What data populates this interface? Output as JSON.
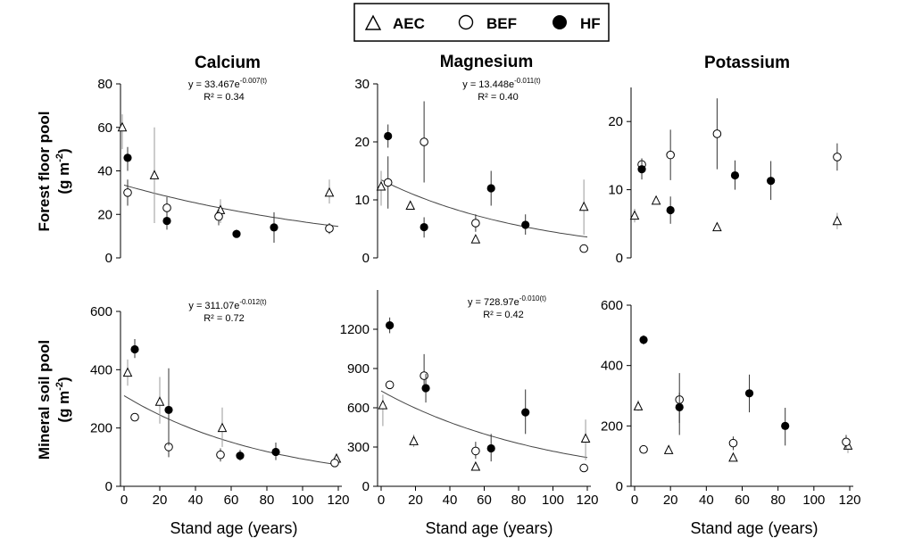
{
  "legend": [
    "AEC",
    "BEF",
    "HF"
  ],
  "row_labels": [
    [
      "Forest floor pool",
      "(g m-2)"
    ],
    [
      "Mineral soil pool",
      "(g m-2)"
    ]
  ],
  "xlabel": "Stand age (years)",
  "chart_data": [
    {
      "type": "scatter",
      "title": "Calcium",
      "ylabel": "Forest floor pool (g m-2)",
      "ylim": [
        0,
        80
      ],
      "yticks": [
        0,
        20,
        40,
        60,
        80
      ],
      "xlim": [
        0,
        120
      ],
      "xticks": null,
      "equation": "y = 33.467e",
      "exponent": "-0.007(t)",
      "r2": "R² = 0.34",
      "fit": {
        "a": 33.467,
        "b": -0.007
      },
      "series": [
        {
          "name": "AEC",
          "points": [
            {
              "x": -1,
              "y": 60,
              "lo": 50,
              "hi": 66
            },
            {
              "x": 17,
              "y": 38,
              "lo": 16,
              "hi": 60
            },
            {
              "x": 54,
              "y": 22,
              "lo": 16,
              "hi": 27
            },
            {
              "x": 115,
              "y": 30,
              "lo": 25,
              "hi": 36
            }
          ]
        },
        {
          "name": "BEF",
          "points": [
            {
              "x": 2,
              "y": 30,
              "lo": 24,
              "hi": 36
            },
            {
              "x": 24,
              "y": 23,
              "lo": 17,
              "hi": 28
            },
            {
              "x": 53,
              "y": 19,
              "lo": 15,
              "hi": 22
            },
            {
              "x": 115,
              "y": 13.5,
              "lo": 11,
              "hi": 16
            }
          ]
        },
        {
          "name": "HF",
          "points": [
            {
              "x": 2,
              "y": 46,
              "lo": 40,
              "hi": 51
            },
            {
              "x": 24,
              "y": 17,
              "lo": 13,
              "hi": 20
            },
            {
              "x": 63,
              "y": 11,
              "lo": 10,
              "hi": 13
            },
            {
              "x": 84,
              "y": 14,
              "lo": 7,
              "hi": 21
            }
          ]
        }
      ]
    },
    {
      "type": "scatter",
      "title": "Magnesium",
      "ylabel": "Forest floor pool (g m-2)",
      "ylim": [
        0,
        30
      ],
      "yticks": [
        0,
        10,
        20,
        30
      ],
      "xlim": [
        0,
        120
      ],
      "xticks": null,
      "equation": "y = 13.448e",
      "exponent": "-0.011(t)",
      "r2": "R² = 0.40",
      "fit": {
        "a": 13.448,
        "b": -0.011
      },
      "series": [
        {
          "name": "AEC",
          "points": [
            {
              "x": 0,
              "y": 12.3,
              "lo": 9,
              "hi": 15
            },
            {
              "x": 17,
              "y": 9,
              "lo": 8.6,
              "hi": 9.4
            },
            {
              "x": 55,
              "y": 3.2,
              "lo": 2.9,
              "hi": 3.5
            },
            {
              "x": 118,
              "y": 8.8,
              "lo": 4,
              "hi": 13.5
            }
          ]
        },
        {
          "name": "BEF",
          "points": [
            {
              "x": 4,
              "y": 13,
              "lo": 8.5,
              "hi": 17.5
            },
            {
              "x": 25,
              "y": 20,
              "lo": 13,
              "hi": 27
            },
            {
              "x": 55,
              "y": 6,
              "lo": 4.5,
              "hi": 7.5
            },
            {
              "x": 118,
              "y": 1.6,
              "lo": 1.2,
              "hi": 2
            }
          ]
        },
        {
          "name": "HF",
          "points": [
            {
              "x": 4,
              "y": 21,
              "lo": 19,
              "hi": 23
            },
            {
              "x": 25,
              "y": 5.3,
              "lo": 3.5,
              "hi": 7
            },
            {
              "x": 64,
              "y": 12,
              "lo": 9,
              "hi": 15
            },
            {
              "x": 84,
              "y": 5.7,
              "lo": 4,
              "hi": 7.5
            }
          ]
        }
      ]
    },
    {
      "type": "scatter",
      "title": "Potassium",
      "ylabel": "Forest floor pool (g m-2)",
      "ylim": [
        0,
        25
      ],
      "yticks": [
        0,
        10,
        20
      ],
      "xlim": [
        0,
        120
      ],
      "xticks": null,
      "series": [
        {
          "name": "AEC",
          "points": [
            {
              "x": 0,
              "y": 6.2,
              "lo": 5.2,
              "hi": 7.2
            },
            {
              "x": 12,
              "y": 8.4,
              "lo": 8,
              "hi": 8.8
            },
            {
              "x": 46,
              "y": 4.5,
              "lo": 4.2,
              "hi": 4.8
            },
            {
              "x": 113,
              "y": 5.4,
              "lo": 4.2,
              "hi": 6.6
            }
          ]
        },
        {
          "name": "BEF",
          "points": [
            {
              "x": 4,
              "y": 13.7,
              "lo": 12.8,
              "hi": 14.6
            },
            {
              "x": 20,
              "y": 15.1,
              "lo": 11.4,
              "hi": 18.8
            },
            {
              "x": 46,
              "y": 18.2,
              "lo": 13,
              "hi": 23.4
            },
            {
              "x": 113,
              "y": 14.8,
              "lo": 12.8,
              "hi": 16.8
            }
          ]
        },
        {
          "name": "HF",
          "points": [
            {
              "x": 4,
              "y": 13,
              "lo": 11.5,
              "hi": 14.5
            },
            {
              "x": 20,
              "y": 7,
              "lo": 5,
              "hi": 9
            },
            {
              "x": 56,
              "y": 12.1,
              "lo": 10,
              "hi": 14.3
            },
            {
              "x": 76,
              "y": 11.3,
              "lo": 8.5,
              "hi": 14.2
            }
          ]
        }
      ]
    },
    {
      "type": "scatter",
      "title": "",
      "ylabel": "Mineral soil pool (g m-2)",
      "ylim": [
        0,
        600
      ],
      "yticks": [
        0,
        200,
        400,
        600
      ],
      "xlim": [
        0,
        120
      ],
      "xticks": [
        0,
        20,
        40,
        60,
        80,
        100,
        120
      ],
      "equation": "y = 311.07e",
      "exponent": "-0.012(t)",
      "r2": "R² = 0.72",
      "fit": {
        "a": 311.07,
        "b": -0.012
      },
      "series": [
        {
          "name": "AEC",
          "points": [
            {
              "x": 2,
              "y": 390,
              "lo": 345,
              "hi": 435
            },
            {
              "x": 20,
              "y": 290,
              "lo": 215,
              "hi": 375
            },
            {
              "x": 55,
              "y": 200,
              "lo": 135,
              "hi": 270
            },
            {
              "x": 119,
              "y": 95,
              "lo": 85,
              "hi": 110
            }
          ]
        },
        {
          "name": "BEF",
          "points": [
            {
              "x": 6,
              "y": 237,
              "lo": 225,
              "hi": 250
            },
            {
              "x": 25,
              "y": 135,
              "lo": 100,
              "hi": 170
            },
            {
              "x": 54,
              "y": 108,
              "lo": 85,
              "hi": 130
            },
            {
              "x": 118,
              "y": 80,
              "lo": 72,
              "hi": 88
            }
          ]
        },
        {
          "name": "HF",
          "points": [
            {
              "x": 6,
              "y": 470,
              "lo": 440,
              "hi": 505
            },
            {
              "x": 25,
              "y": 262,
              "lo": 140,
              "hi": 405
            },
            {
              "x": 65,
              "y": 105,
              "lo": 88,
              "hi": 125
            },
            {
              "x": 85,
              "y": 118,
              "lo": 90,
              "hi": 150
            }
          ]
        }
      ]
    },
    {
      "type": "scatter",
      "title": "",
      "ylabel": "Mineral soil pool (g m-2)",
      "ylim": [
        0,
        1500
      ],
      "yticks": [
        0,
        300,
        600,
        900,
        1200
      ],
      "xlim": [
        0,
        120
      ],
      "xticks": [
        0,
        20,
        40,
        60,
        80,
        100,
        120
      ],
      "equation": "y = 728.97e",
      "exponent": "-0.010(t)",
      "r2": "R² = 0.42",
      "fit": {
        "a": 728.97,
        "b": -0.01
      },
      "series": [
        {
          "name": "AEC",
          "points": [
            {
              "x": 1,
              "y": 620,
              "lo": 460,
              "hi": 700
            },
            {
              "x": 19,
              "y": 345,
              "lo": 300,
              "hi": 395
            },
            {
              "x": 55,
              "y": 150,
              "lo": 120,
              "hi": 185
            },
            {
              "x": 119,
              "y": 365,
              "lo": 200,
              "hi": 510
            }
          ]
        },
        {
          "name": "BEF",
          "points": [
            {
              "x": 5,
              "y": 775,
              "lo": 755,
              "hi": 795
            },
            {
              "x": 25,
              "y": 845,
              "lo": 720,
              "hi": 1010
            },
            {
              "x": 55,
              "y": 270,
              "lo": 210,
              "hi": 340
            },
            {
              "x": 118,
              "y": 140,
              "lo": 110,
              "hi": 170
            }
          ]
        },
        {
          "name": "HF",
          "points": [
            {
              "x": 5,
              "y": 1230,
              "lo": 1170,
              "hi": 1290
            },
            {
              "x": 26,
              "y": 750,
              "lo": 640,
              "hi": 860
            },
            {
              "x": 64,
              "y": 290,
              "lo": 190,
              "hi": 400
            },
            {
              "x": 84,
              "y": 565,
              "lo": 400,
              "hi": 740
            }
          ]
        }
      ]
    },
    {
      "type": "scatter",
      "title": "",
      "ylabel": "Mineral soil pool (g m-2)",
      "ylim": [
        0,
        600
      ],
      "yticks": [
        0,
        200,
        400,
        600
      ],
      "xlim": [
        0,
        120
      ],
      "xticks": [
        0,
        20,
        40,
        60,
        80,
        100,
        120
      ],
      "series": [
        {
          "name": "AEC",
          "points": [
            {
              "x": 2,
              "y": 265,
              "lo": 250,
              "hi": 285
            },
            {
              "x": 19,
              "y": 120,
              "lo": 108,
              "hi": 132
            },
            {
              "x": 55,
              "y": 95,
              "lo": 88,
              "hi": 102
            },
            {
              "x": 119,
              "y": 135,
              "lo": 110,
              "hi": 155
            }
          ]
        },
        {
          "name": "BEF",
          "points": [
            {
              "x": 5,
              "y": 122,
              "lo": 115,
              "hi": 130
            },
            {
              "x": 25,
              "y": 287,
              "lo": 170,
              "hi": 375
            },
            {
              "x": 55,
              "y": 143,
              "lo": 120,
              "hi": 165
            },
            {
              "x": 118,
              "y": 147,
              "lo": 125,
              "hi": 170
            }
          ]
        },
        {
          "name": "HF",
          "points": [
            {
              "x": 5,
              "y": 485,
              "lo": 470,
              "hi": 500
            },
            {
              "x": 25,
              "y": 262,
              "lo": 210,
              "hi": 310
            },
            {
              "x": 64,
              "y": 308,
              "lo": 245,
              "hi": 370
            },
            {
              "x": 84,
              "y": 200,
              "lo": 135,
              "hi": 260
            }
          ]
        }
      ]
    }
  ]
}
